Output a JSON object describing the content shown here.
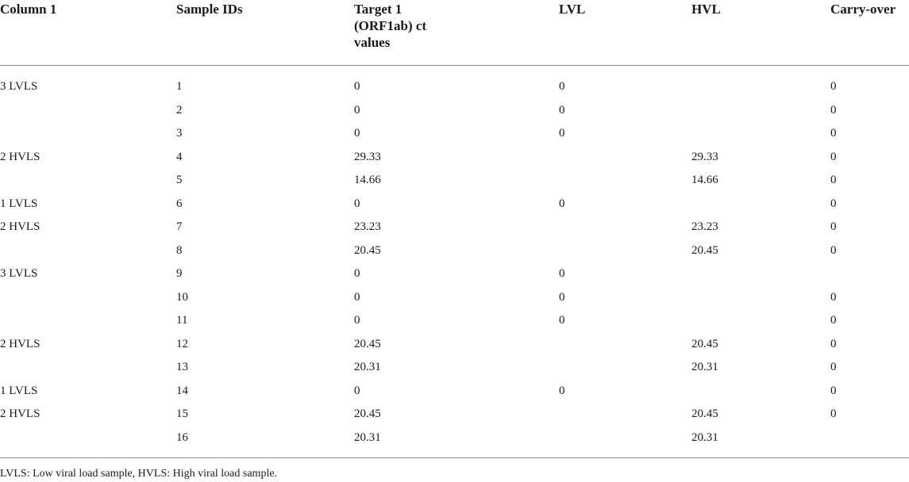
{
  "table": {
    "headers": {
      "col1": "Column 1",
      "col2": "Sample IDs",
      "col3": "Target 1 (ORF1ab) ct values",
      "col4": "LVL",
      "col5": "HVL",
      "col6": "Carry-over"
    },
    "rows": [
      {
        "group": "3 LVLS",
        "id": "1",
        "target": "0",
        "lvl": "0",
        "hvl": "",
        "carry": "0"
      },
      {
        "group": "",
        "id": "2",
        "target": "0",
        "lvl": "0",
        "hvl": "",
        "carry": "0"
      },
      {
        "group": "",
        "id": "3",
        "target": "0",
        "lvl": "0",
        "hvl": "",
        "carry": "0"
      },
      {
        "group": "2 HVLS",
        "id": "4",
        "target": "29.33",
        "lvl": "",
        "hvl": "29.33",
        "carry": "0"
      },
      {
        "group": "",
        "id": "5",
        "target": "14.66",
        "lvl": "",
        "hvl": "14.66",
        "carry": "0"
      },
      {
        "group": "1 LVLS",
        "id": "6",
        "target": "0",
        "lvl": "0",
        "hvl": "",
        "carry": "0"
      },
      {
        "group": "2 HVLS",
        "id": "7",
        "target": "23.23",
        "lvl": "",
        "hvl": "23.23",
        "carry": "0"
      },
      {
        "group": "",
        "id": "8",
        "target": "20.45",
        "lvl": "",
        "hvl": "20.45",
        "carry": "0"
      },
      {
        "group": "3 LVLS",
        "id": "9",
        "target": "0",
        "lvl": "0",
        "hvl": "",
        "carry": ""
      },
      {
        "group": "",
        "id": "10",
        "target": "0",
        "lvl": "0",
        "hvl": "",
        "carry": "0"
      },
      {
        "group": "",
        "id": "11",
        "target": "0",
        "lvl": "0",
        "hvl": "",
        "carry": "0"
      },
      {
        "group": "2 HVLS",
        "id": "12",
        "target": "20.45",
        "lvl": "",
        "hvl": "20.45",
        "carry": "0"
      },
      {
        "group": "",
        "id": "13",
        "target": "20.31",
        "lvl": "",
        "hvl": "20.31",
        "carry": "0"
      },
      {
        "group": "1 LVLS",
        "id": "14",
        "target": "0",
        "lvl": "0",
        "hvl": "",
        "carry": "0"
      },
      {
        "group": "2 HVLS",
        "id": "15",
        "target": "20.45",
        "lvl": "",
        "hvl": "20.45",
        "carry": "0"
      },
      {
        "group": "",
        "id": "16",
        "target": "20.31",
        "lvl": "",
        "hvl": "20.31",
        "carry": ""
      }
    ]
  },
  "footnote": "LVLS: Low viral load sample, HVLS: High viral load sample."
}
